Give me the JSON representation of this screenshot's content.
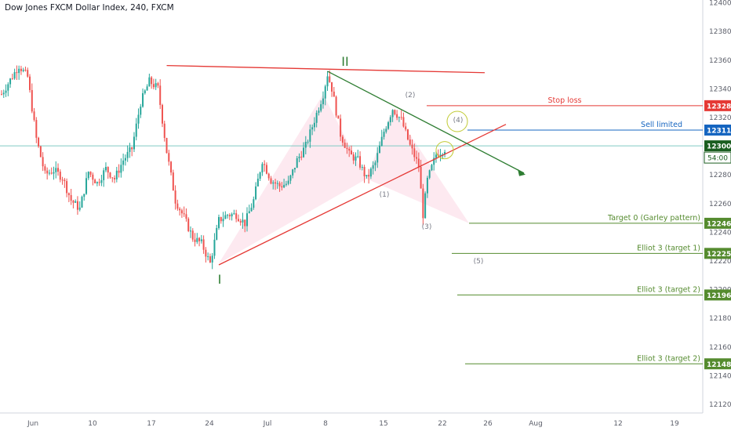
{
  "chart_title": "Dow Jones FXCM Dollar Index, 240, FXCM",
  "colors": {
    "up": "#26a69a",
    "down": "#ef5350",
    "wave_label": "#2e7d32",
    "red_line": "#e53935",
    "green_line": "#2e7d32",
    "sell_line": "#1565c0",
    "target_line": "#558b2f",
    "current_line": "#80cbc4",
    "grid_text": "#5d606b",
    "pattern_fill": "#fce4ec"
  },
  "chart_data": {
    "type": "candlestick",
    "title": "Dow Jones FXCM Dollar Index, 240, FXCM",
    "x_ticks": [
      "Jun",
      "10",
      "17",
      "24",
      "Jul",
      "8",
      "15",
      "22",
      "26",
      "Aug",
      "12",
      "19"
    ],
    "y_ticks": [
      12120,
      12140,
      12160,
      12180,
      12200,
      12220,
      12240,
      12260,
      12280,
      12300,
      12320,
      12340,
      12360,
      12380,
      12400
    ],
    "ylim": [
      12108,
      12404
    ],
    "price_path": [
      [
        0,
        12336
      ],
      [
        4,
        12346
      ],
      [
        8,
        12356
      ],
      [
        12,
        12348
      ],
      [
        16,
        12305
      ],
      [
        20,
        12280
      ],
      [
        24,
        12283
      ],
      [
        28,
        12278
      ],
      [
        32,
        12262
      ],
      [
        36,
        12256
      ],
      [
        40,
        12282
      ],
      [
        44,
        12274
      ],
      [
        48,
        12284
      ],
      [
        52,
        12277
      ],
      [
        56,
        12290
      ],
      [
        60,
        12298
      ],
      [
        64,
        12330
      ],
      [
        68,
        12345
      ],
      [
        72,
        12340
      ],
      [
        76,
        12296
      ],
      [
        80,
        12262
      ],
      [
        84,
        12250
      ],
      [
        88,
        12236
      ],
      [
        92,
        12232
      ],
      [
        96,
        12218
      ],
      [
        100,
        12248
      ],
      [
        104,
        12252
      ],
      [
        108,
        12252
      ],
      [
        112,
        12246
      ],
      [
        116,
        12262
      ],
      [
        120,
        12290
      ],
      [
        124,
        12276
      ],
      [
        128,
        12272
      ],
      [
        132,
        12274
      ],
      [
        136,
        12290
      ],
      [
        140,
        12300
      ],
      [
        144,
        12318
      ],
      [
        148,
        12336
      ],
      [
        150,
        12350
      ],
      [
        152,
        12340
      ],
      [
        156,
        12308
      ],
      [
        160,
        12294
      ],
      [
        164,
        12290
      ],
      [
        168,
        12277
      ],
      [
        172,
        12288
      ],
      [
        176,
        12310
      ],
      [
        180,
        12326
      ],
      [
        184,
        12318
      ],
      [
        188,
        12300
      ],
      [
        192,
        12286
      ],
      [
        194,
        12252
      ],
      [
        196,
        12276
      ],
      [
        200,
        12294
      ],
      [
        204,
        12298
      ]
    ],
    "annotations": {
      "wave_I": "I",
      "wave_II": "II",
      "sub_1": "(1)",
      "sub_2": "(2)",
      "sub_3": "(3)",
      "sub_4": "(4)",
      "sub_5": "(5)"
    },
    "levels": [
      {
        "label": "Stop loss",
        "price": "12328",
        "value": 12328,
        "role": "stop"
      },
      {
        "label": "Sell limited",
        "price": "12311",
        "value": 12311,
        "role": "sell"
      },
      {
        "label": "",
        "price": "12300",
        "value": 12300,
        "role": "current"
      },
      {
        "label": "Target 0 (Garley pattern)",
        "price": "12246",
        "value": 12246,
        "role": "target"
      },
      {
        "label": "Elliot 3 (target 1)",
        "price": "12225",
        "value": 12225,
        "role": "target"
      },
      {
        "label": "Elliot 3 (target 2)",
        "price": "12196",
        "value": 12196,
        "role": "target"
      },
      {
        "label": "Elliot 3 (target 2)",
        "price": "12148",
        "value": 12148,
        "role": "target"
      }
    ],
    "countdown": "54:00",
    "legend": "none",
    "grid": false
  }
}
